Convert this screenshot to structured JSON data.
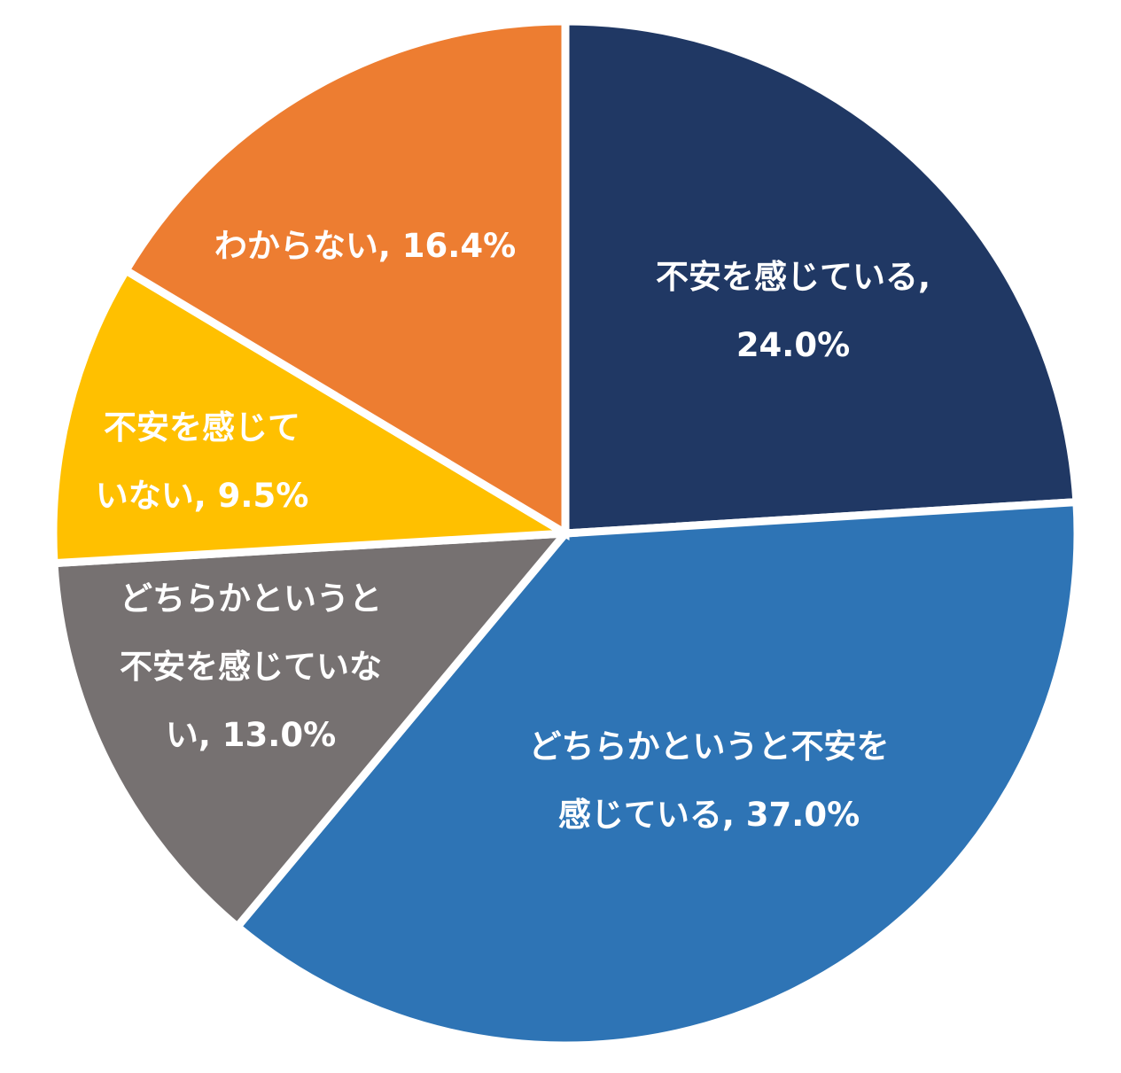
{
  "chart_data": {
    "type": "pie",
    "title": "",
    "slices": [
      {
        "label": "不安を感じている, 24.0%",
        "lines": [
          "不安を感じている,",
          "24.0%"
        ],
        "value": 24.0,
        "color": "#203864"
      },
      {
        "label": "どちらかというと不安を感じている, 37.0%",
        "lines": [
          "どちらかというと不安を",
          "感じている, 37.0%"
        ],
        "value": 37.0,
        "color": "#2e74b5"
      },
      {
        "label": "どちらかというと不安を感じていない, 13.0%",
        "lines": [
          "どちらかというと",
          "不安を感じていな",
          "い, 13.0%"
        ],
        "value": 13.0,
        "color": "#767171"
      },
      {
        "label": "不安を感じていない, 9.5%",
        "lines": [
          "不安を感じて",
          "いない, 9.5%"
        ],
        "value": 9.5,
        "color": "#ffc000"
      },
      {
        "label": "わからない, 16.4%",
        "lines": [
          "わからない, 16.4%"
        ],
        "value": 16.4,
        "color": "#ed7d31"
      }
    ],
    "start_angle": "12 o'clock",
    "direction": "clockwise",
    "legend": "none",
    "data_labels": "inside"
  }
}
